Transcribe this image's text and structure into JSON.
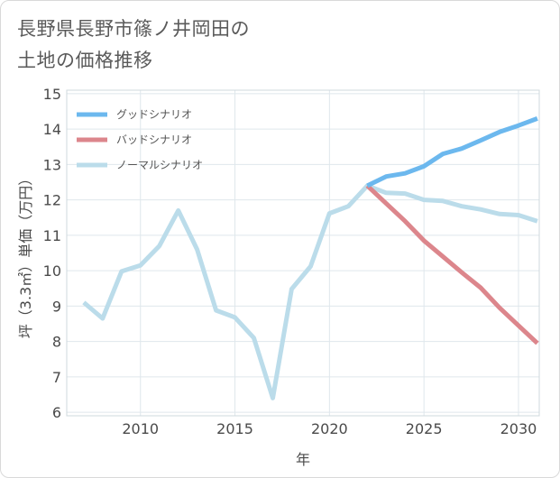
{
  "chart_data": {
    "type": "line",
    "title_lines": [
      "長野県長野市篠ノ井岡田の",
      "土地の価格推移"
    ],
    "xlabel": "年",
    "ylabel": "坪（3.3㎡）単価（万円）",
    "xlim": [
      2006.1,
      2031.1
    ],
    "ylim": [
      5.9,
      15.1
    ],
    "xticks": [
      2010,
      2015,
      2020,
      2025,
      2030
    ],
    "yticks": [
      6,
      7,
      8,
      9,
      10,
      11,
      12,
      13,
      14,
      15
    ],
    "grid": true,
    "legend_position": "top-left",
    "series": [
      {
        "name": "グッドシナリオ",
        "color": "#6cb8ee",
        "x": [
          2022,
          2023,
          2024,
          2025,
          2026,
          2027,
          2028,
          2029,
          2030,
          2031
        ],
        "y": [
          12.4,
          12.66,
          12.75,
          12.95,
          13.3,
          13.45,
          13.68,
          13.92,
          14.1,
          14.3
        ]
      },
      {
        "name": "バッドシナリオ",
        "color": "#dc868c",
        "x": [
          2022,
          2023,
          2024,
          2025,
          2026,
          2027,
          2028,
          2029,
          2030,
          2031
        ],
        "y": [
          12.4,
          11.9,
          11.4,
          10.85,
          10.4,
          9.95,
          9.52,
          8.95,
          8.45,
          7.95
        ]
      },
      {
        "name": "ノーマルシナリオ",
        "color": "#bbdcea",
        "x": [
          2007,
          2008,
          2009,
          2010,
          2011,
          2012,
          2013,
          2014,
          2015,
          2016,
          2017,
          2018,
          2019,
          2020,
          2021,
          2022,
          2023,
          2024,
          2025,
          2026,
          2027,
          2028,
          2029,
          2030,
          2031
        ],
        "y": [
          9.1,
          8.65,
          9.98,
          10.15,
          10.7,
          11.7,
          10.6,
          8.88,
          8.68,
          8.1,
          6.4,
          9.48,
          10.12,
          11.62,
          11.82,
          12.4,
          12.2,
          12.18,
          12.0,
          11.97,
          11.82,
          11.73,
          11.6,
          11.57,
          11.4
        ]
      }
    ]
  }
}
